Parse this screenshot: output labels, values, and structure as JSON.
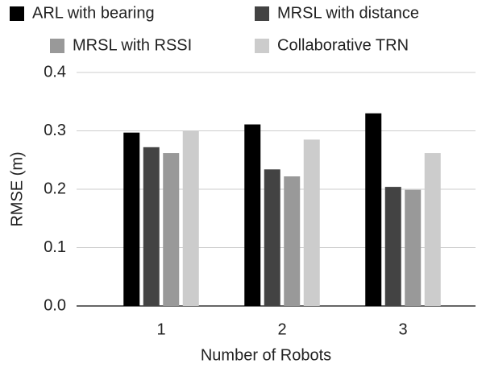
{
  "chart_data": {
    "type": "bar",
    "categories": [
      "1",
      "2",
      "3"
    ],
    "series": [
      {
        "name": "ARL with bearing",
        "color": "#000000",
        "values": [
          0.297,
          0.311,
          0.33
        ]
      },
      {
        "name": "MRSL with distance",
        "color": "#434343",
        "values": [
          0.272,
          0.234,
          0.204
        ]
      },
      {
        "name": "MRSL with RSSI",
        "color": "#999999",
        "values": [
          0.262,
          0.222,
          0.199
        ]
      },
      {
        "name": "Collaborative TRN",
        "color": "#cccccc",
        "values": [
          0.3,
          0.285,
          0.262
        ]
      }
    ],
    "x_label": "Number of Robots",
    "y_label": "RMSE (m)",
    "ylim": [
      0,
      0.4
    ],
    "yticks": [
      {
        "value": 0,
        "label": "0.0"
      },
      {
        "value": 0.1,
        "label": "0.1"
      },
      {
        "value": 0.2,
        "label": "0.2"
      },
      {
        "value": 0.3,
        "label": "0.3"
      },
      {
        "value": 0.4,
        "label": "0.4"
      }
    ],
    "grid": true,
    "legend": "top"
  }
}
